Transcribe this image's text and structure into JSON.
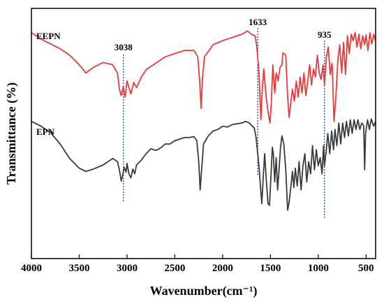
{
  "chart_data": {
    "type": "line",
    "xlabel": "Wavenumber(cm⁻¹)",
    "ylabel": "Transmittance (%)",
    "xlim": [
      4000,
      400
    ],
    "xaxis_reversed": true,
    "ticks": [
      4000,
      3500,
      3000,
      2500,
      2000,
      1500,
      1000,
      500
    ],
    "tick_labels": [
      "4000",
      "3500",
      "3000",
      "2500",
      "2000",
      "1500",
      "1000",
      "500"
    ],
    "y_ticks_shown": false,
    "grid": false,
    "series": [
      {
        "name": "EEPN",
        "color": "#e8393b",
        "points": [
          [
            4000,
            2.0
          ],
          [
            3900,
            1.92
          ],
          [
            3800,
            1.86
          ],
          [
            3700,
            1.8
          ],
          [
            3600,
            1.72
          ],
          [
            3500,
            1.6
          ],
          [
            3430,
            1.5
          ],
          [
            3350,
            1.57
          ],
          [
            3250,
            1.63
          ],
          [
            3150,
            1.6
          ],
          [
            3100,
            1.5
          ],
          [
            3080,
            1.3
          ],
          [
            3060,
            1.22
          ],
          [
            3040,
            1.33
          ],
          [
            3020,
            1.2
          ],
          [
            3000,
            1.4
          ],
          [
            2960,
            1.24
          ],
          [
            2930,
            1.38
          ],
          [
            2900,
            1.32
          ],
          [
            2850,
            1.45
          ],
          [
            2800,
            1.54
          ],
          [
            2700,
            1.62
          ],
          [
            2600,
            1.7
          ],
          [
            2500,
            1.74
          ],
          [
            2400,
            1.78
          ],
          [
            2300,
            1.78
          ],
          [
            2260,
            1.7
          ],
          [
            2240,
            1.4
          ],
          [
            2225,
            1.06
          ],
          [
            2210,
            1.45
          ],
          [
            2190,
            1.7
          ],
          [
            2100,
            1.85
          ],
          [
            2000,
            1.9
          ],
          [
            1900,
            1.94
          ],
          [
            1800,
            1.98
          ],
          [
            1740,
            2.02
          ],
          [
            1700,
            1.98
          ],
          [
            1660,
            1.96
          ],
          [
            1645,
            1.85
          ],
          [
            1633,
            1.7
          ],
          [
            1620,
            1.5
          ],
          [
            1600,
            0.92
          ],
          [
            1585,
            1.3
          ],
          [
            1570,
            1.55
          ],
          [
            1545,
            1.2
          ],
          [
            1520,
            0.98
          ],
          [
            1505,
            0.88
          ],
          [
            1490,
            1.15
          ],
          [
            1475,
            1.6
          ],
          [
            1455,
            1.25
          ],
          [
            1440,
            1.5
          ],
          [
            1420,
            1.4
          ],
          [
            1400,
            1.57
          ],
          [
            1380,
            1.6
          ],
          [
            1370,
            1.75
          ],
          [
            1340,
            1.72
          ],
          [
            1320,
            1.2
          ],
          [
            1305,
            0.95
          ],
          [
            1290,
            1.1
          ],
          [
            1270,
            1.3
          ],
          [
            1250,
            1.15
          ],
          [
            1230,
            1.4
          ],
          [
            1210,
            1.2
          ],
          [
            1190,
            1.45
          ],
          [
            1170,
            1.25
          ],
          [
            1150,
            1.5
          ],
          [
            1130,
            1.22
          ],
          [
            1110,
            1.4
          ],
          [
            1090,
            1.6
          ],
          [
            1070,
            1.35
          ],
          [
            1050,
            1.55
          ],
          [
            1030,
            1.45
          ],
          [
            1010,
            1.72
          ],
          [
            990,
            1.5
          ],
          [
            970,
            1.42
          ],
          [
            950,
            1.6
          ],
          [
            935,
            1.35
          ],
          [
            915,
            1.7
          ],
          [
            895,
            1.82
          ],
          [
            875,
            1.48
          ],
          [
            855,
            1.62
          ],
          [
            835,
            0.9
          ],
          [
            815,
            1.22
          ],
          [
            795,
            1.66
          ],
          [
            775,
            1.85
          ],
          [
            755,
            1.5
          ],
          [
            735,
            1.88
          ],
          [
            715,
            1.48
          ],
          [
            695,
            1.96
          ],
          [
            675,
            1.74
          ],
          [
            655,
            1.98
          ],
          [
            635,
            1.9
          ],
          [
            615,
            2.0
          ],
          [
            595,
            1.82
          ],
          [
            575,
            1.98
          ],
          [
            555,
            1.8
          ],
          [
            535,
            1.96
          ],
          [
            515,
            1.85
          ],
          [
            500,
            1.97
          ],
          [
            480,
            1.78
          ],
          [
            460,
            2.0
          ],
          [
            440,
            1.86
          ],
          [
            420,
            1.98
          ],
          [
            400,
            1.9
          ]
        ]
      },
      {
        "name": "EPN",
        "color": "#3a3a3a",
        "points": [
          [
            4000,
            0.9
          ],
          [
            3900,
            0.84
          ],
          [
            3800,
            0.76
          ],
          [
            3700,
            0.62
          ],
          [
            3600,
            0.44
          ],
          [
            3500,
            0.32
          ],
          [
            3430,
            0.28
          ],
          [
            3350,
            0.31
          ],
          [
            3250,
            0.36
          ],
          [
            3200,
            0.4
          ],
          [
            3150,
            0.44
          ],
          [
            3100,
            0.4
          ],
          [
            3080,
            0.3
          ],
          [
            3060,
            0.16
          ],
          [
            3045,
            0.24
          ],
          [
            3030,
            0.33
          ],
          [
            3010,
            0.27
          ],
          [
            3000,
            0.38
          ],
          [
            2980,
            0.25
          ],
          [
            2960,
            0.2
          ],
          [
            2940,
            0.31
          ],
          [
            2920,
            0.25
          ],
          [
            2900,
            0.36
          ],
          [
            2850,
            0.42
          ],
          [
            2800,
            0.5
          ],
          [
            2750,
            0.56
          ],
          [
            2700,
            0.54
          ],
          [
            2650,
            0.57
          ],
          [
            2600,
            0.62
          ],
          [
            2550,
            0.62
          ],
          [
            2500,
            0.66
          ],
          [
            2450,
            0.68
          ],
          [
            2400,
            0.7
          ],
          [
            2350,
            0.7
          ],
          [
            2300,
            0.71
          ],
          [
            2270,
            0.66
          ],
          [
            2250,
            0.4
          ],
          [
            2235,
            0.05
          ],
          [
            2220,
            0.3
          ],
          [
            2200,
            0.62
          ],
          [
            2150,
            0.72
          ],
          [
            2100,
            0.78
          ],
          [
            2050,
            0.8
          ],
          [
            2000,
            0.84
          ],
          [
            1950,
            0.83
          ],
          [
            1900,
            0.86
          ],
          [
            1850,
            0.87
          ],
          [
            1800,
            0.88
          ],
          [
            1760,
            0.9
          ],
          [
            1720,
            0.88
          ],
          [
            1690,
            0.84
          ],
          [
            1670,
            0.82
          ],
          [
            1650,
            0.7
          ],
          [
            1633,
            0.5
          ],
          [
            1620,
            0.35
          ],
          [
            1605,
            0.1
          ],
          [
            1590,
            -0.12
          ],
          [
            1575,
            0.22
          ],
          [
            1560,
            0.5
          ],
          [
            1545,
            0.2
          ],
          [
            1525,
            -0.12
          ],
          [
            1510,
            -0.14
          ],
          [
            1495,
            0.2
          ],
          [
            1480,
            0.58
          ],
          [
            1470,
            0.5
          ],
          [
            1455,
            0.15
          ],
          [
            1440,
            0.45
          ],
          [
            1425,
            0.05
          ],
          [
            1410,
            0.3
          ],
          [
            1395,
            0.57
          ],
          [
            1380,
            0.72
          ],
          [
            1360,
            0.62
          ],
          [
            1340,
            0.3
          ],
          [
            1320,
            -0.2
          ],
          [
            1305,
            -0.1
          ],
          [
            1290,
            0.05
          ],
          [
            1270,
            0.28
          ],
          [
            1255,
            0.08
          ],
          [
            1240,
            0.32
          ],
          [
            1220,
            0.1
          ],
          [
            1200,
            0.4
          ],
          [
            1180,
            0.05
          ],
          [
            1160,
            0.35
          ],
          [
            1140,
            0.5
          ],
          [
            1120,
            0.15
          ],
          [
            1100,
            0.4
          ],
          [
            1080,
            0.25
          ],
          [
            1060,
            0.6
          ],
          [
            1040,
            0.3
          ],
          [
            1020,
            0.55
          ],
          [
            1000,
            0.35
          ],
          [
            980,
            0.45
          ],
          [
            960,
            0.25
          ],
          [
            945,
            0.6
          ],
          [
            935,
            0.35
          ],
          [
            915,
            0.55
          ],
          [
            900,
            0.75
          ],
          [
            880,
            0.5
          ],
          [
            860,
            0.78
          ],
          [
            840,
            0.55
          ],
          [
            825,
            0.8
          ],
          [
            805,
            0.6
          ],
          [
            785,
            0.88
          ],
          [
            765,
            0.62
          ],
          [
            745,
            0.88
          ],
          [
            725,
            0.7
          ],
          [
            705,
            0.9
          ],
          [
            685,
            0.72
          ],
          [
            665,
            0.92
          ],
          [
            645,
            0.75
          ],
          [
            625,
            0.92
          ],
          [
            605,
            0.8
          ],
          [
            585,
            0.92
          ],
          [
            565,
            0.8
          ],
          [
            545,
            0.88
          ],
          [
            525,
            0.85
          ],
          [
            515,
            0.3
          ],
          [
            505,
            0.75
          ],
          [
            485,
            0.92
          ],
          [
            465,
            0.8
          ],
          [
            445,
            0.93
          ],
          [
            420,
            0.84
          ],
          [
            400,
            0.9
          ]
        ]
      }
    ],
    "annotations": [
      {
        "label": "3038",
        "x": 3038
      },
      {
        "label": "1633",
        "x": 1633
      },
      {
        "label": "935",
        "x": 935
      }
    ],
    "annotation_line_color": "#1f3fb8"
  }
}
